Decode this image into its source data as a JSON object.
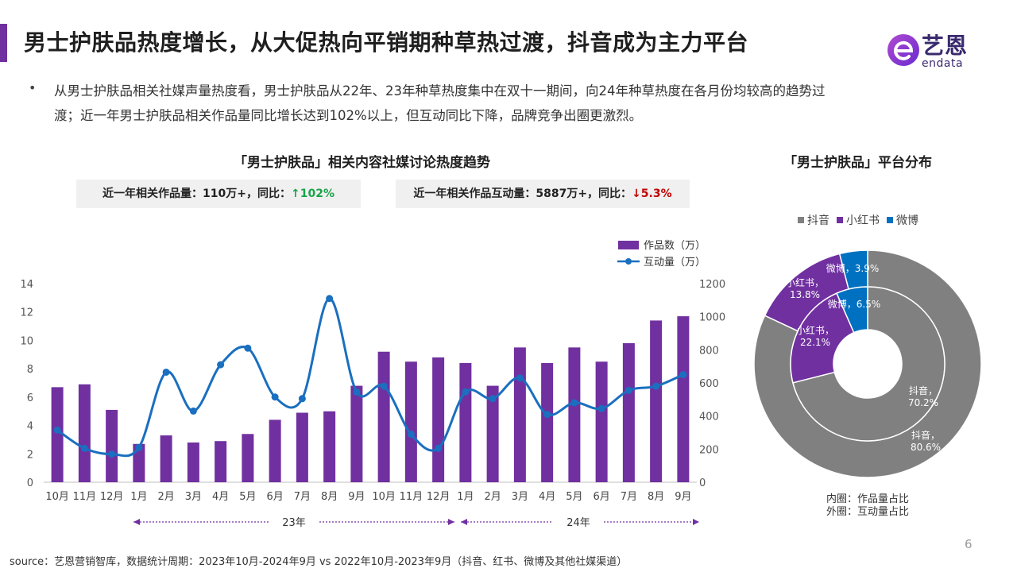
{
  "header": {
    "title": "男士护肤品热度增长，从大促热向平销期种草热过渡，抖音成为主力平台",
    "logo_cn": "艺恩",
    "logo_en": "endata"
  },
  "summary": {
    "bullet": "•",
    "text": "从男士护肤品相关社媒声量热度看，男士护肤品从22年、23年种草热度集中在双十一期间，向24年种草热度在各月份均较高的趋势过渡；近一年男士护肤品相关作品量同比增长达到102%以上，但互动同比下降，品牌竞争出圈更激烈。"
  },
  "stats": {
    "works_label": "近一年相关作品量：110万+，同比：",
    "works_change": "↑102%",
    "interact_label": "近一年相关作品互动量：5887万+，同比：",
    "interact_change": "↓5.3%"
  },
  "chart_data": [
    {
      "type": "bar",
      "title": "「男士护肤品」相关内容社媒讨论热度趋势",
      "categories": [
        "10月",
        "11月",
        "12月",
        "1月",
        "2月",
        "3月",
        "4月",
        "5月",
        "6月",
        "7月",
        "8月",
        "9月",
        "10月",
        "11月",
        "12月",
        "1月",
        "2月",
        "3月",
        "4月",
        "5月",
        "6月",
        "7月",
        "8月",
        "9月"
      ],
      "series": [
        {
          "name": "作品数（万）",
          "kind": "bar",
          "axis": "left",
          "color": "#7030a0",
          "values": [
            6.7,
            6.9,
            5.1,
            2.7,
            3.3,
            2.8,
            2.9,
            3.4,
            4.4,
            4.9,
            5.0,
            6.8,
            9.2,
            8.5,
            8.8,
            8.4,
            6.8,
            9.5,
            8.4,
            9.5,
            8.5,
            9.8,
            11.4,
            11.7
          ]
        },
        {
          "name": "互动量（万）",
          "kind": "line",
          "axis": "right",
          "color": "#1a6fbf",
          "values": [
            315,
            205,
            170,
            210,
            665,
            430,
            710,
            810,
            515,
            505,
            1110,
            545,
            580,
            290,
            205,
            545,
            505,
            630,
            410,
            480,
            445,
            555,
            580,
            650
          ]
        }
      ],
      "y_left": {
        "min": 0,
        "max": 14,
        "ticks": [
          0,
          2,
          4,
          6,
          8,
          10,
          12,
          14
        ]
      },
      "y_right": {
        "min": 0,
        "max": 1200,
        "ticks": [
          0,
          200,
          400,
          600,
          800,
          1000,
          1200
        ]
      },
      "year_labels": [
        {
          "label": "23年",
          "from_index": 0,
          "to_index": 14
        },
        {
          "label": "24年",
          "from_index": 15,
          "to_index": 23
        }
      ],
      "legend_position": "top-right",
      "grid": false
    },
    {
      "type": "pie",
      "title": "「男士护肤品」平台分布",
      "legend": [
        "抖音",
        "小红书",
        "微博"
      ],
      "colors": {
        "抖音": "#808080",
        "小红书": "#7030a0",
        "微博": "#0070c0"
      },
      "inner_ring": {
        "label": "内圈：作品量占比",
        "slices": [
          {
            "name": "抖音",
            "value": 70.2,
            "text": "抖音，70.2%"
          },
          {
            "name": "小红书",
            "value": 22.1,
            "text": "小红书，22.1%"
          },
          {
            "name": "微博",
            "value": 6.5,
            "text": "微博，6.5%"
          }
        ]
      },
      "outer_ring": {
        "label": "外圈：互动量占比",
        "slices": [
          {
            "name": "抖音",
            "value": 80.6,
            "text": "抖音，80.6%"
          },
          {
            "name": "小红书",
            "value": 13.8,
            "text": "小红书，13.8%"
          },
          {
            "name": "微博",
            "value": 3.9,
            "text": "微博，3.9%"
          }
        ]
      }
    }
  ],
  "footer": {
    "source": "source：艺恩营销智库，数据统计周期：2023年10月-2024年9月 vs 2022年10月-2023年9月（抖音、红书、微博及其他社媒渠道）",
    "page": "6"
  }
}
